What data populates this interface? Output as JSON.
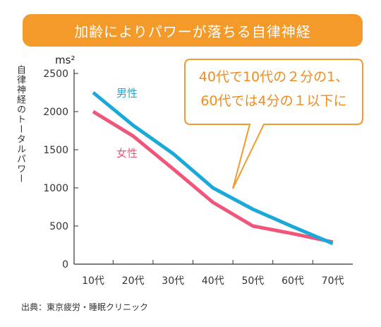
{
  "title": "加齢によりパワーが落ちる自律神経",
  "callout": {
    "line1": "40代で10代の２分の1、",
    "line2": "60代では4分の１以下に"
  },
  "source": "出典：東京疲労・睡眠クリニック",
  "colors": {
    "title_bg": "#f39a2b",
    "male": "#1aa9d9",
    "female": "#f0557a",
    "callout_border": "#f39a2b",
    "callout_text": "#f08c1e"
  },
  "chart_data": {
    "type": "line",
    "categories": [
      "10代",
      "20代",
      "30代",
      "40代",
      "50代",
      "60代",
      "70代"
    ],
    "series": [
      {
        "name": "男性",
        "values": [
          2250,
          1820,
          1450,
          1000,
          720,
          490,
          270
        ]
      },
      {
        "name": "女性",
        "values": [
          2000,
          1680,
          1250,
          810,
          500,
          400,
          290
        ]
      }
    ],
    "ylabel": "自律神経のトータルパワー",
    "yunit": "ms²",
    "ylim": [
      0,
      2500
    ],
    "yticks": [
      "0",
      "500",
      "1000",
      "1500",
      "2000",
      "2500"
    ],
    "grid": false,
    "legend": "inline labels"
  }
}
